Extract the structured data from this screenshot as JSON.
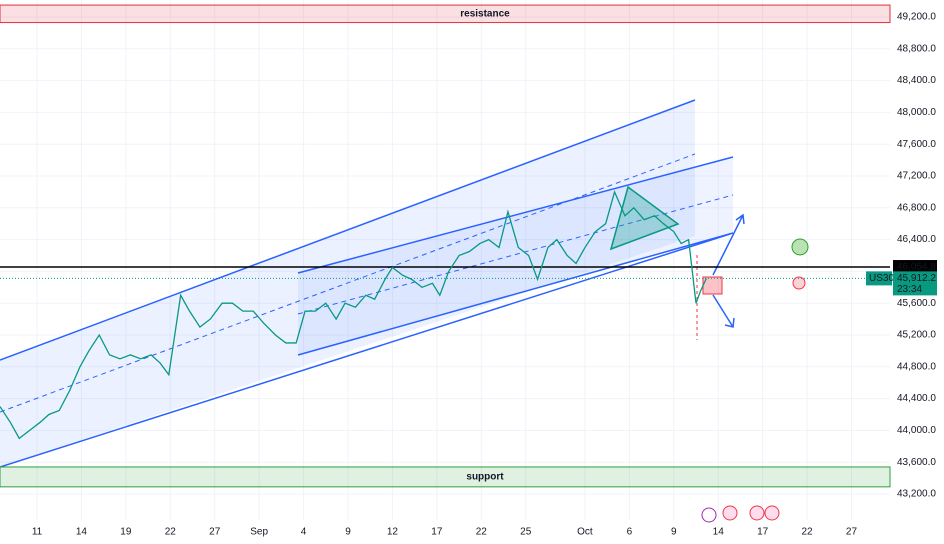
{
  "chart_data": {
    "type": "line",
    "symbol": "US30",
    "countdown": "23:34",
    "xlim": [
      0,
      60.1
    ],
    "xticks": [
      {
        "value": 2.5,
        "label": "11"
      },
      {
        "value": 5.5,
        "label": "14"
      },
      {
        "value": 8.5,
        "label": "19"
      },
      {
        "value": 11.5,
        "label": "22"
      },
      {
        "value": 14.5,
        "label": "27"
      },
      {
        "value": 17.5,
        "label": "Sep"
      },
      {
        "value": 20.5,
        "label": "4"
      },
      {
        "value": 23.5,
        "label": "9"
      },
      {
        "value": 26.5,
        "label": "12"
      },
      {
        "value": 29.5,
        "label": "17"
      },
      {
        "value": 32.5,
        "label": "22"
      },
      {
        "value": 35.5,
        "label": "25"
      },
      {
        "value": 39.5,
        "label": "Oct"
      },
      {
        "value": 42.5,
        "label": "6"
      },
      {
        "value": 45.5,
        "label": "9"
      },
      {
        "value": 48.5,
        "label": "14"
      },
      {
        "value": 51.5,
        "label": "17"
      },
      {
        "value": 54.5,
        "label": "22"
      },
      {
        "value": 57.5,
        "label": "27"
      }
    ],
    "ylim": [
      43200,
      49200
    ],
    "yticks": [
      {
        "value": 43200,
        "label": "43,200.0"
      },
      {
        "value": 43600,
        "label": "43,600.0"
      },
      {
        "value": 44000,
        "label": "44,000.0"
      },
      {
        "value": 44400,
        "label": "44,400.0"
      },
      {
        "value": 44800,
        "label": "44,800.0"
      },
      {
        "value": 45200,
        "label": "45,200.0"
      },
      {
        "value": 45600,
        "label": "45,600.0"
      },
      {
        "value": 46000,
        "label": "46,000.0"
      },
      {
        "value": 46400,
        "label": "46,400.0"
      },
      {
        "value": 46800,
        "label": "46,800.0"
      },
      {
        "value": 47200,
        "label": "47,200.0"
      },
      {
        "value": 47600,
        "label": "47,600.0"
      },
      {
        "value": 48000,
        "label": "48,000.0"
      },
      {
        "value": 48400,
        "label": "48,400.0"
      },
      {
        "value": 48800,
        "label": "48,800.0"
      },
      {
        "value": 49200,
        "label": "49,200.0"
      }
    ],
    "zones": [
      {
        "label": "resistance",
        "range": [
          49130,
          49350
        ],
        "color": "#e0313d"
      },
      {
        "label": "support",
        "range": [
          43290,
          43540
        ],
        "color": "#2e9e3c"
      }
    ],
    "price_line": {
      "value": 46054.8,
      "label": "46,054.8"
    },
    "last_price": {
      "value": 45912.2,
      "label": "45,912.2"
    },
    "series": [
      {
        "name": "US30",
        "color": "#089981",
        "x": [
          0,
          0.7,
          1.3,
          2,
          2.7,
          3.3,
          4,
          4.7,
          5.4,
          6,
          6.7,
          7.4,
          8.1,
          8.8,
          9.5,
          10.2,
          10.8,
          11.4,
          12.2,
          12.8,
          13.5,
          14.2,
          15,
          15.7,
          16.4,
          17.1,
          17.8,
          18.6,
          19.3,
          20,
          20.6,
          21.3,
          22,
          22.7,
          23.3,
          24,
          24.7,
          25.3,
          26,
          26.5,
          27.2,
          27.8,
          28.5,
          29.2,
          29.7,
          30.3,
          31,
          31.7,
          32.4,
          33,
          33.7,
          34.3,
          35,
          35.7,
          36.3,
          37,
          37.6,
          38.3,
          38.9,
          39.5,
          40.2,
          40.9,
          41.5,
          42.2,
          42.8,
          43.5,
          44.2,
          44.8,
          45.5,
          46,
          46.5,
          47,
          47.3,
          47.7
        ],
        "values": [
          44300,
          44100,
          43900,
          44000,
          44100,
          44200,
          44250,
          44500,
          44800,
          45000,
          45200,
          44950,
          44900,
          44950,
          44900,
          44950,
          44850,
          44700,
          45700,
          45500,
          45300,
          45400,
          45600,
          45600,
          45500,
          45500,
          45350,
          45200,
          45100,
          45100,
          45500,
          45500,
          45600,
          45400,
          45600,
          45550,
          45700,
          45650,
          45900,
          46050,
          45950,
          45900,
          45800,
          45850,
          45700,
          46000,
          46200,
          46250,
          46350,
          46400,
          46300,
          46750,
          46300,
          46200,
          45900,
          46300,
          46400,
          46200,
          46100,
          46300,
          46500,
          46600,
          47000,
          46700,
          46800,
          46650,
          46700,
          46600,
          46500,
          46350,
          46400,
          45600,
          45750,
          45912.2
        ]
      }
    ]
  }
}
